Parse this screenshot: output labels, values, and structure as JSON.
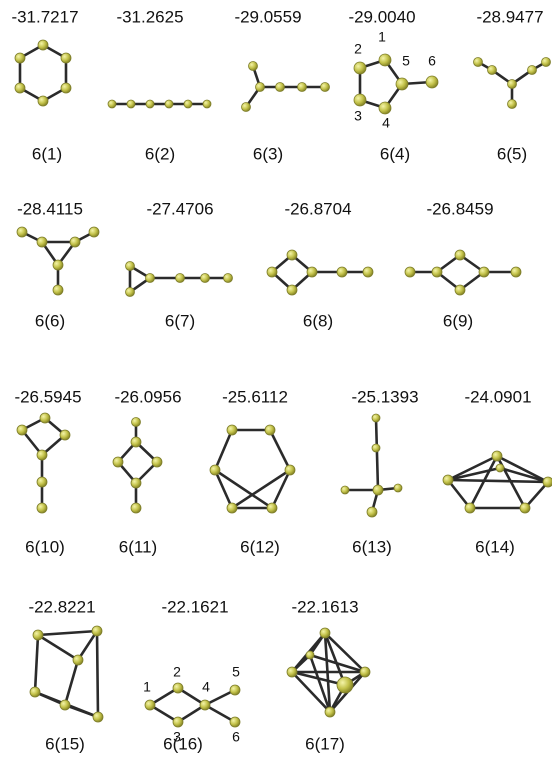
{
  "structures": [
    {
      "energy": "-31.7217",
      "label": "6(1)"
    },
    {
      "energy": "-31.2625",
      "label": "6(2)"
    },
    {
      "energy": "-29.0559",
      "label": "6(3)"
    },
    {
      "energy": "-29.0040",
      "label": "6(4)",
      "atom_labels": [
        "1",
        "2",
        "3",
        "4",
        "5",
        "6"
      ]
    },
    {
      "energy": "-28.9477",
      "label": "6(5)"
    },
    {
      "energy": "-28.4115",
      "label": "6(6)"
    },
    {
      "energy": "-27.4706",
      "label": "6(7)"
    },
    {
      "energy": "-26.8704",
      "label": "6(8)"
    },
    {
      "energy": "-26.8459",
      "label": "6(9)"
    },
    {
      "energy": "-26.5945",
      "label": "6(10)"
    },
    {
      "energy": "-26.0956",
      "label": "6(11)"
    },
    {
      "energy": "-25.6112",
      "label": "6(12)"
    },
    {
      "energy": "-25.1393",
      "label": "6(13)"
    },
    {
      "energy": "-24.0901",
      "label": "6(14)"
    },
    {
      "energy": "-22.8221",
      "label": "6(15)"
    },
    {
      "energy": "-22.1621",
      "label": "6(16)",
      "atom_labels": [
        "1",
        "2",
        "3",
        "4",
        "5",
        "6"
      ]
    },
    {
      "energy": "-22.1613",
      "label": "6(17)"
    }
  ]
}
